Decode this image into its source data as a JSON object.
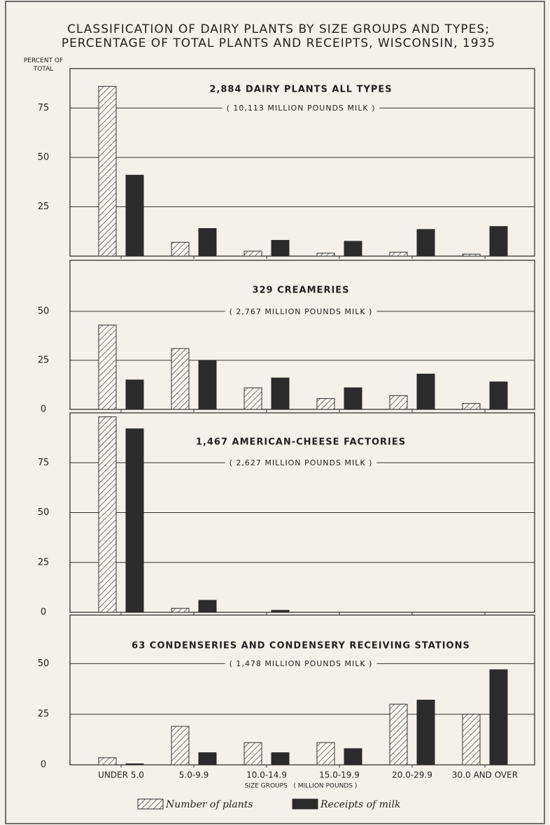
{
  "chart_data": [
    {
      "type": "bar",
      "title": "CLASSIFICATION OF DAIRY PLANTS BY SIZE GROUPS AND TYPES; PERCENTAGE OF TOTAL PLANTS AND RECEIPTS, WISCONSIN, 1935",
      "y_label": "PERCENT OF TOTAL",
      "panel_title": "2,884 DAIRY PLANTS ALL TYPES",
      "subtitle": "( 10,113 MILLION POUNDS MILK )",
      "ylim": [
        0,
        95
      ],
      "yticks": [
        25,
        50,
        75
      ],
      "grid": true,
      "series": [
        {
          "color": "#333333",
          "hatch": true,
          "values": [
            86,
            7,
            2.5,
            1.5,
            2,
            1
          ]
        },
        {
          "color": "#2b2b2b",
          "values": [
            41,
            14,
            8,
            7.5,
            13.5,
            15
          ]
        }
      ]
    },
    {
      "type": "bar",
      "panel_title": "329 CREAMERIES",
      "subtitle": "( 2,767 MILLION POUNDS MILK )",
      "ylim": [
        0,
        76
      ],
      "yticks": [
        0,
        25,
        50
      ],
      "grid": true,
      "series": [
        {
          "color": "#333333",
          "hatch": true,
          "values": [
            43,
            31,
            11,
            5.5,
            7,
            3
          ]
        },
        {
          "color": "#2b2b2b",
          "values": [
            15,
            25,
            16,
            11,
            18,
            14
          ]
        }
      ]
    },
    {
      "type": "bar",
      "panel_title": "1,467 AMERICAN-CHEESE FACTORIES",
      "subtitle": "( 2,627 MILLION POUNDS MILK )",
      "ylim": [
        0,
        100
      ],
      "yticks": [
        0,
        25,
        50,
        75
      ],
      "grid": true,
      "series": [
        {
          "color": "#333333",
          "hatch": true,
          "values": [
            98,
            2,
            0,
            0,
            0,
            0
          ]
        },
        {
          "color": "#2b2b2b",
          "values": [
            92,
            6,
            1,
            0,
            0,
            0
          ]
        }
      ]
    },
    {
      "type": "bar",
      "panel_title": "63 CONDENSERIES AND CONDENSERY RECEIVING STATIONS",
      "subtitle": "( 1,478 MILLION POUNDS MILK )",
      "ylim": [
        0,
        74
      ],
      "yticks": [
        0,
        25,
        50
      ],
      "grid": true,
      "categories": [
        "UNDER 5.0",
        "5.0-9.9",
        "10.0-14.9",
        "15.0-19.9",
        "20.0-29.9",
        "30.0 AND OVER"
      ],
      "x_label": "SIZE GROUPS   ( MILLION POUNDS )",
      "series": [
        {
          "name": "Number of plants",
          "color": "#333333",
          "hatch": true,
          "values": [
            3.5,
            19,
            11,
            11,
            30,
            25
          ]
        },
        {
          "name": "Receipts of milk",
          "color": "#2b2b2b",
          "values": [
            0.5,
            6,
            6,
            8,
            32,
            47
          ]
        }
      ]
    }
  ]
}
